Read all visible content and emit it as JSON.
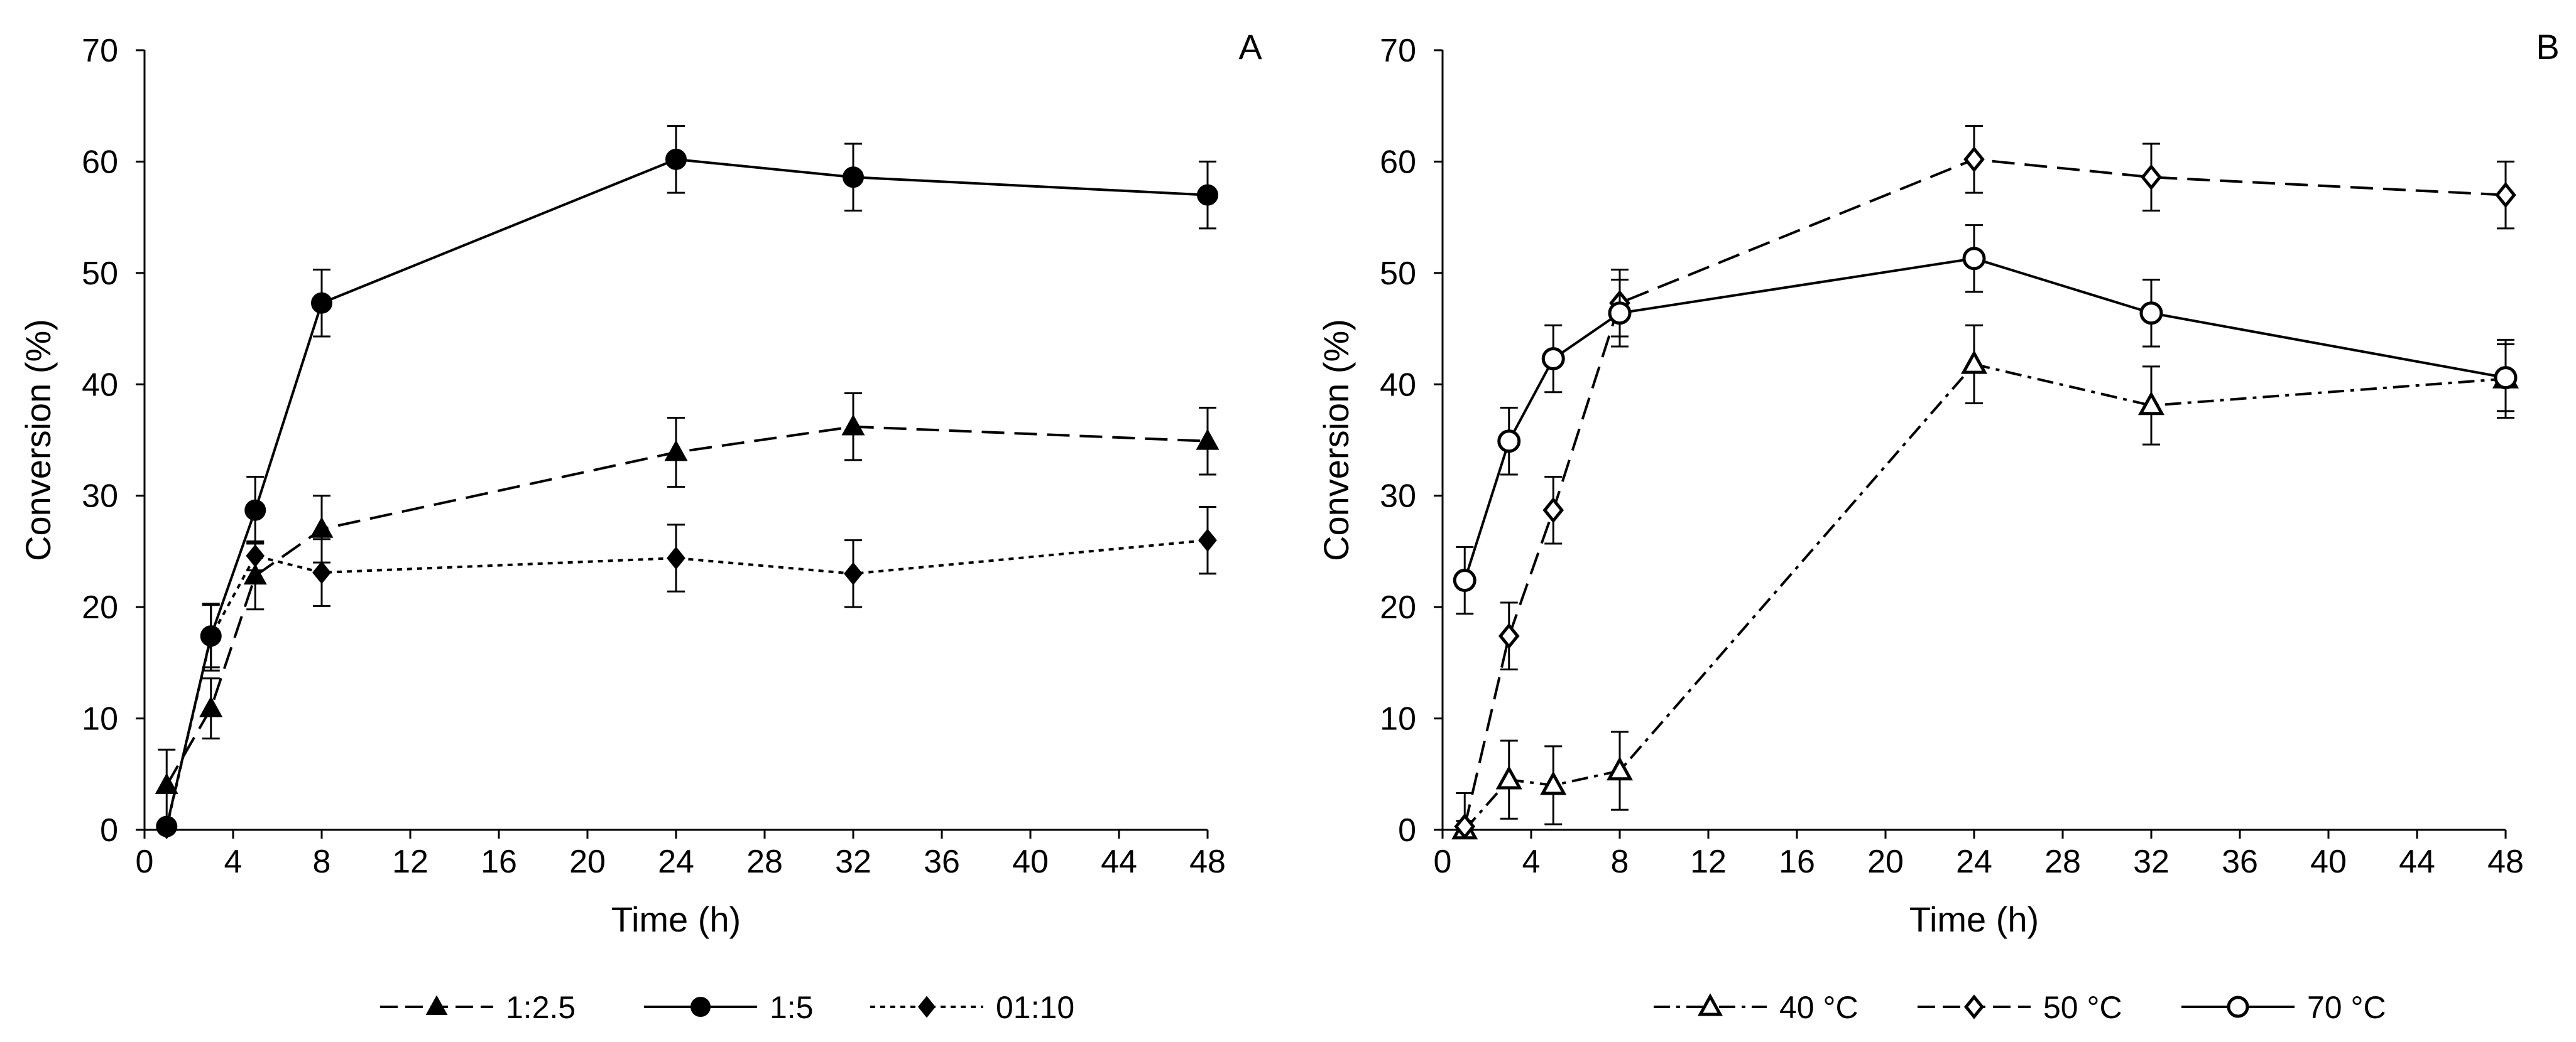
{
  "chart_data": [
    {
      "type": "line",
      "panel_label": "A",
      "xlabel": "Time (h)",
      "ylabel": "Conversion (%)",
      "xlim": [
        0,
        48
      ],
      "ylim": [
        0,
        70
      ],
      "xticks": [
        0,
        4,
        8,
        12,
        16,
        20,
        24,
        28,
        32,
        36,
        40,
        44,
        48
      ],
      "yticks": [
        0,
        10,
        20,
        30,
        40,
        50,
        60,
        70
      ],
      "x": [
        1,
        3,
        5,
        8,
        24,
        32,
        48
      ],
      "series": [
        {
          "name": "1:2.5",
          "marker": "triangle",
          "line": "dash",
          "values": [
            4.0,
            10.9,
            22.8,
            27.0,
            33.9,
            36.2,
            34.9
          ],
          "errors": [
            3.2,
            2.7,
            3.0,
            3.0,
            3.1,
            3.0,
            3.0
          ]
        },
        {
          "name": "1:5",
          "marker": "circle",
          "line": "solid",
          "values": [
            0.3,
            17.4,
            28.7,
            47.3,
            60.2,
            58.6,
            57.0
          ],
          "errors": [
            0.5,
            2.8,
            3.0,
            3.0,
            3.0,
            3.0,
            3.0
          ]
        },
        {
          "name": "01:10",
          "marker": "diamond",
          "line": "dot",
          "values": [
            0.2,
            17.3,
            24.6,
            23.1,
            24.4,
            23.0,
            26.0
          ],
          "errors": [
            0.5,
            3.0,
            1.3,
            3.0,
            3.0,
            3.0,
            3.0
          ]
        }
      ]
    },
    {
      "type": "line",
      "panel_label": "B",
      "xlabel": "Time (h)",
      "ylabel": "Conversion (%)",
      "xlim": [
        0,
        48
      ],
      "ylim": [
        0,
        70
      ],
      "xticks": [
        0,
        4,
        8,
        12,
        16,
        20,
        24,
        28,
        32,
        36,
        40,
        44,
        48
      ],
      "yticks": [
        0,
        10,
        20,
        30,
        40,
        50,
        60,
        70
      ],
      "x": [
        1,
        3,
        5,
        8,
        24,
        32,
        48
      ],
      "series": [
        {
          "name": "40 °C",
          "marker": "open-triangle",
          "line": "dashdot",
          "values": [
            0.0,
            4.5,
            4.0,
            5.3,
            41.8,
            38.1,
            40.5
          ],
          "errors": [
            3.3,
            3.5,
            3.5,
            3.5,
            3.5,
            3.5,
            3.5
          ]
        },
        {
          "name": "50 °C",
          "marker": "open-diamond",
          "line": "dash",
          "values": [
            0.3,
            17.4,
            28.7,
            47.3,
            60.2,
            58.6,
            57.0
          ],
          "errors": [
            0.5,
            3.0,
            3.0,
            3.0,
            3.0,
            3.0,
            3.0
          ]
        },
        {
          "name": "70 °C",
          "marker": "open-circle",
          "line": "solid",
          "values": [
            22.4,
            34.9,
            42.3,
            46.4,
            51.3,
            46.4,
            40.6
          ],
          "errors": [
            3.0,
            3.0,
            3.0,
            3.0,
            3.0,
            3.0,
            3.0
          ]
        }
      ]
    }
  ]
}
